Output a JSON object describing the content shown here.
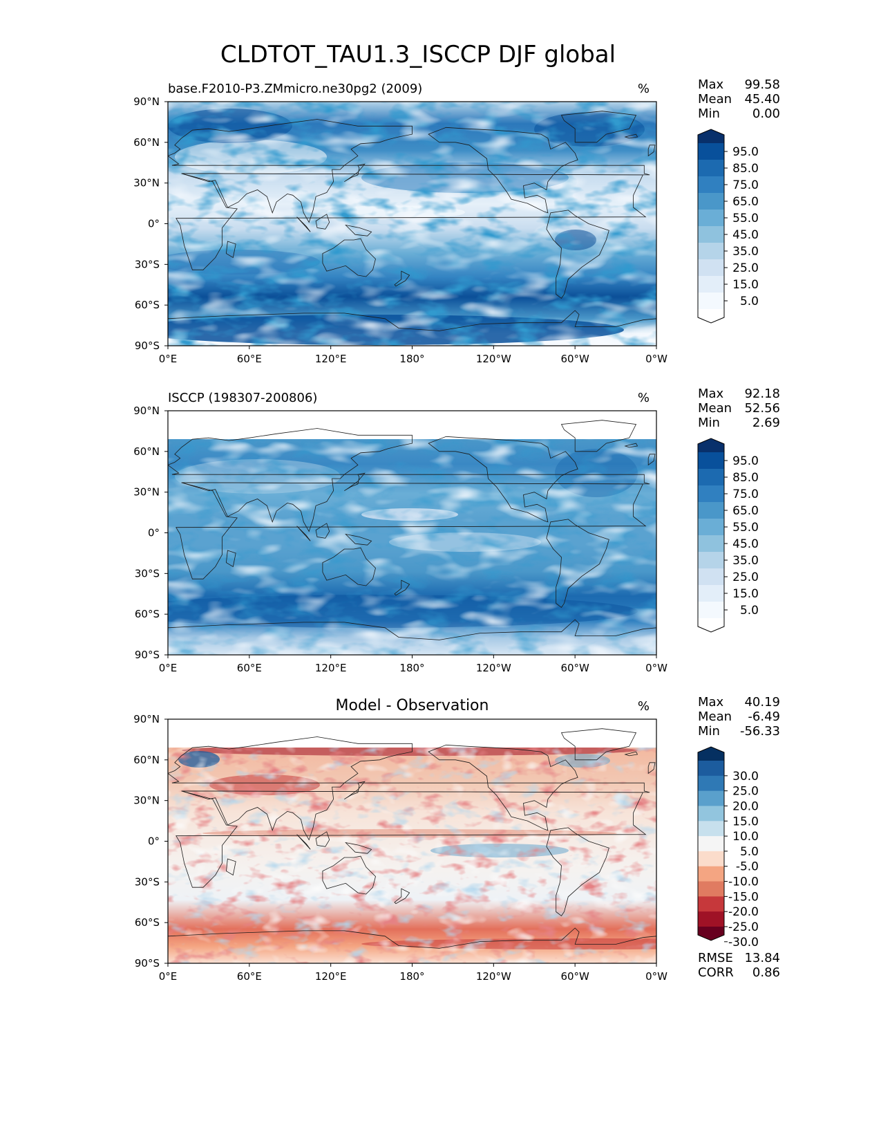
{
  "title": "CLDTOT_TAU1.3_ISCCP DJF global",
  "x_ticks": [
    "0°E",
    "60°E",
    "120°E",
    "180°",
    "120°W",
    "60°W",
    "0°W"
  ],
  "y_ticks": [
    "90°N",
    "60°N",
    "30°N",
    "0°",
    "30°S",
    "60°S",
    "90°S"
  ],
  "panels": [
    {
      "subtitle_left": "base.F2010-P3.ZMmicro.ne30pg2 (2009)",
      "subtitle_center": "",
      "units": "%",
      "stats": [
        {
          "label": "Max",
          "value": "99.58"
        },
        {
          "label": "Mean",
          "value": "45.40"
        },
        {
          "label": "Min",
          "value": "0.00"
        }
      ],
      "colorbar": {
        "labels": [
          "95.0",
          "85.0",
          "75.0",
          "65.0",
          "55.0",
          "45.0",
          "35.0",
          "25.0",
          "15.0",
          "5.0"
        ],
        "colors": [
          "#08306b",
          "#08509b",
          "#1c6ab0",
          "#3080c0",
          "#4a97c9",
          "#6aaed6",
          "#8fc2de",
          "#b5d4e9",
          "#d0e1f2",
          "#e3eef9",
          "#f4f9fe",
          "#ffffff"
        ]
      },
      "footer_stats": []
    },
    {
      "subtitle_left": "ISCCP (198307-200806)",
      "subtitle_center": "",
      "units": "%",
      "stats": [
        {
          "label": "Max",
          "value": "92.18"
        },
        {
          "label": "Mean",
          "value": "52.56"
        },
        {
          "label": "Min",
          "value": "2.69"
        }
      ],
      "colorbar": {
        "labels": [
          "95.0",
          "85.0",
          "75.0",
          "65.0",
          "55.0",
          "45.0",
          "35.0",
          "25.0",
          "15.0",
          "5.0"
        ],
        "colors": [
          "#08306b",
          "#08509b",
          "#1c6ab0",
          "#3080c0",
          "#4a97c9",
          "#6aaed6",
          "#8fc2de",
          "#b5d4e9",
          "#d0e1f2",
          "#e3eef9",
          "#f4f9fe",
          "#ffffff"
        ]
      },
      "footer_stats": []
    },
    {
      "subtitle_left": "",
      "subtitle_center": "Model - Observation",
      "units": "%",
      "stats": [
        {
          "label": "Max",
          "value": "40.19"
        },
        {
          "label": "Mean",
          "value": "-6.49"
        },
        {
          "label": "Min",
          "value": "-56.33"
        }
      ],
      "colorbar": {
        "labels": [
          "30.0",
          "25.0",
          "20.0",
          "15.0",
          "10.0",
          "5.0",
          "-5.0",
          "-10.0",
          "-15.0",
          "-20.0",
          "-25.0",
          "-30.0"
        ],
        "colors": [
          "#053061",
          "#1c5c9e",
          "#2f79b5",
          "#5aa0cc",
          "#92c5de",
          "#c7e0ed",
          "#f5f5f5",
          "#fbdccb",
          "#f4a582",
          "#e07b61",
          "#c6383b",
          "#9f1226",
          "#67001f"
        ]
      },
      "footer_stats": [
        {
          "label": "RMSE",
          "value": "13.84"
        },
        {
          "label": "CORR",
          "value": "0.86"
        }
      ]
    }
  ]
}
